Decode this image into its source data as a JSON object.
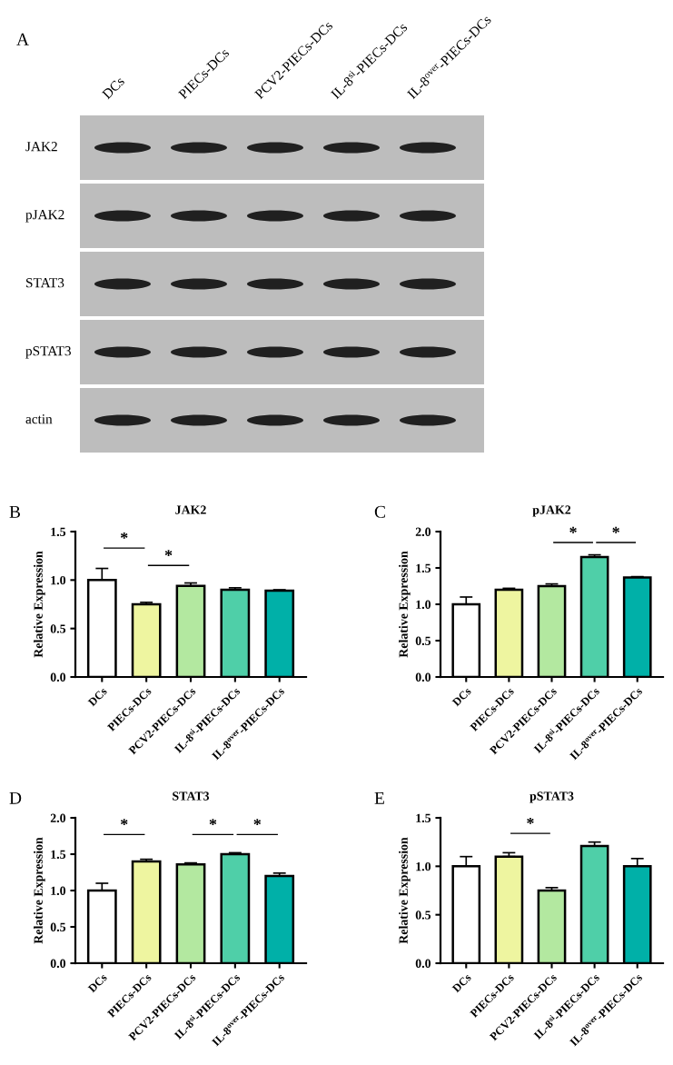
{
  "chart_data": [
    {
      "type": "other",
      "categories": [
        "DCs",
        "PIECs-DCs",
        "PCV2-PIECs-DCs",
        "IL-8$^{si}$-PIECs-DCs",
        "IL-8$^{over}$-PIECs-DCs"
      ],
      "annotations": [
        "A",
        "JAK2",
        "pJAK2",
        "STAT3",
        "pSTAT3",
        "actin"
      ]
    },
    {
      "type": "bar",
      "title": "JAK2",
      "ylabel": "Relative Expression",
      "categories": [
        "DCs",
        "PIECs-DCs",
        "PCV2-PIECs-DCs",
        "IL-8$^{si}$-PIECs-DCs",
        "IL-8$^{over}$-PIECs-DCs"
      ],
      "values": [
        1.0,
        0.75,
        0.94,
        0.9,
        0.89
      ],
      "errors": [
        [
          1.0,
          1.12
        ],
        [
          0.75,
          0.77
        ],
        [
          0.94,
          0.97
        ],
        [
          0.9,
          0.92
        ],
        [
          0.89,
          0.9
        ]
      ],
      "colors": [
        "#ffffff",
        "#eef5a0",
        "#b3e8a0",
        "#4fcfa8",
        "#00b0a8"
      ],
      "ylim": [
        0,
        1.5
      ],
      "yticks": [
        {
          "value": 0,
          "label": "0.0"
        },
        {
          "value": 0.5,
          "label": "0.5"
        },
        {
          "value": 1,
          "label": "1.0"
        },
        {
          "value": 1.5,
          "label": "1.5"
        }
      ],
      "annotations": [
        "B",
        "*",
        "*"
      ]
    },
    {
      "type": "bar",
      "title": "pJAK2",
      "ylabel": "Relative Expression",
      "categories": [
        "DCs",
        "PIECs-DCs",
        "PCV2-PIECs-DCs",
        "IL-8$^{si}$-PIECs-DCs",
        "IL-8$^{over}$-PIECs-DCs"
      ],
      "values": [
        1.0,
        1.2,
        1.25,
        1.65,
        1.37
      ],
      "errors": [
        [
          1.0,
          1.1
        ],
        [
          1.2,
          1.22
        ],
        [
          1.25,
          1.28
        ],
        [
          1.65,
          1.68
        ],
        [
          1.37,
          1.38
        ]
      ],
      "colors": [
        "#ffffff",
        "#eef5a0",
        "#b3e8a0",
        "#4fcfa8",
        "#00b0a8"
      ],
      "ylim": [
        0,
        2
      ],
      "yticks": [
        {
          "value": 0,
          "label": "0.0"
        },
        {
          "value": 0.5,
          "label": "0.5"
        },
        {
          "value": 1,
          "label": "1.0"
        },
        {
          "value": 1.5,
          "label": "1.5"
        },
        {
          "value": 2,
          "label": "2.0"
        }
      ],
      "annotations": [
        "C",
        "*",
        "*"
      ]
    },
    {
      "type": "bar",
      "title": "STAT3",
      "ylabel": "Relative Expression",
      "categories": [
        "DCs",
        "PIECs-DCs",
        "PCV2-PIECs-DCs",
        "IL-8$^{si}$-PIECs-DCs",
        "IL-8$^{over}$-PIECs-DCs"
      ],
      "values": [
        1.0,
        1.4,
        1.36,
        1.5,
        1.2
      ],
      "errors": [
        [
          1.0,
          1.1
        ],
        [
          1.4,
          1.43
        ],
        [
          1.36,
          1.38
        ],
        [
          1.5,
          1.52
        ],
        [
          1.2,
          1.24
        ]
      ],
      "colors": [
        "#ffffff",
        "#eef5a0",
        "#b3e8a0",
        "#4fcfa8",
        "#00b0a8"
      ],
      "ylim": [
        0,
        2
      ],
      "yticks": [
        {
          "value": 0,
          "label": "0.0"
        },
        {
          "value": 0.5,
          "label": "0.5"
        },
        {
          "value": 1,
          "label": "1.0"
        },
        {
          "value": 1.5,
          "label": "1.5"
        },
        {
          "value": 2,
          "label": "2.0"
        }
      ],
      "annotations": [
        "D",
        "*",
        "*",
        "*"
      ]
    },
    {
      "type": "bar",
      "title": "pSTAT3",
      "ylabel": "Relative Expression",
      "categories": [
        "DCs",
        "PIECs-DCs",
        "PCV2-PIECs-DCs",
        "IL-8$^{si}$-PIECs-DCs",
        "IL-8$^{over}$-PIECs-DCs"
      ],
      "values": [
        1.0,
        1.1,
        0.75,
        1.21,
        1.0
      ],
      "errors": [
        [
          1.0,
          1.1
        ],
        [
          1.1,
          1.14
        ],
        [
          0.75,
          0.78
        ],
        [
          1.21,
          1.25
        ],
        [
          1.0,
          1.08
        ]
      ],
      "colors": [
        "#ffffff",
        "#eef5a0",
        "#b3e8a0",
        "#4fcfa8",
        "#00b0a8"
      ],
      "ylim": [
        0,
        1.5
      ],
      "yticks": [
        {
          "value": 0,
          "label": "0.0"
        },
        {
          "value": 0.5,
          "label": "0.5"
        },
        {
          "value": 1,
          "label": "1.0"
        },
        {
          "value": 1.5,
          "label": "1.5"
        }
      ],
      "annotations": [
        "E",
        "*"
      ]
    }
  ]
}
